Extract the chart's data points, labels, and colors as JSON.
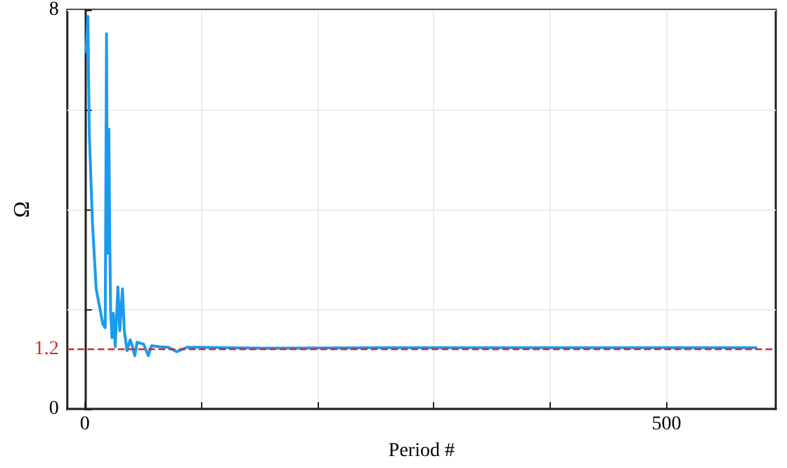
{
  "chart_data": {
    "type": "line",
    "xlabel": "Period #",
    "ylabel": "Ω",
    "x": [
      1.2,
      2.7,
      3.9,
      6.6,
      9.8,
      15.6,
      17.6,
      18.7,
      19.5,
      20.7,
      21.5,
      22.2,
      23.4,
      24.6,
      26.2,
      28.5,
      30.1,
      32.4,
      34,
      36.3,
      39,
      41,
      43,
      45,
      50.7,
      54.6,
      57.4,
      64.4,
      72,
      79,
      88,
      100,
      154,
      250,
      350,
      450,
      577
    ],
    "series": [
      {
        "color": "#1a9bf0",
        "values": [
          7.16,
          7.87,
          5.52,
          3.74,
          2.41,
          1.7,
          1.63,
          7.52,
          3.12,
          5.61,
          3.39,
          1.97,
          1.43,
          1.92,
          1.25,
          2.45,
          1.57,
          2.41,
          1.57,
          1.17,
          1.39,
          1.25,
          1.07,
          1.34,
          1.3,
          1.07,
          1.27,
          1.25,
          1.24,
          1.15,
          1.24,
          1.24,
          1.22,
          1.23,
          1.23,
          1.23,
          1.23
        ]
      }
    ],
    "xlim": [
      -15,
      594
    ],
    "xticks": [
      0,
      {
        "value": 100,
        "label": null
      },
      {
        "value": 200,
        "label": null
      },
      {
        "value": 300,
        "label": null
      },
      {
        "value": 400,
        "label": null
      },
      500
    ],
    "ylim": [
      0,
      8
    ],
    "yticks": [
      0,
      {
        "value": 2,
        "label": null
      },
      {
        "value": 4,
        "label": null
      },
      {
        "value": 6,
        "label": null
      },
      8
    ],
    "ref_lines": [
      {
        "axis": "y",
        "value": 1.2,
        "label": "1.2",
        "color": "#d62728",
        "line_style": "dashed"
      }
    ],
    "grid": true,
    "marker": "none",
    "line_style": "solid"
  }
}
